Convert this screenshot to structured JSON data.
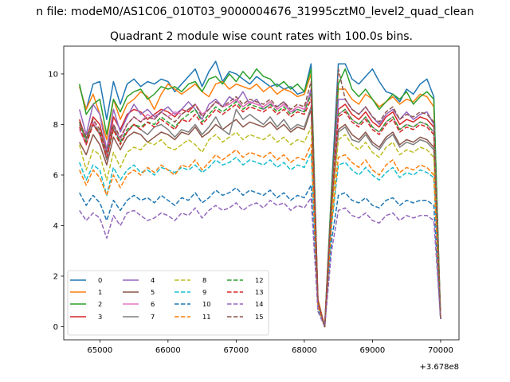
{
  "chart_data": {
    "type": "line",
    "suptitle": "n file: modeM0/AS1C06_010T03_9000004676_31995cztM0_level2_quad_clean",
    "title": "Quadrant 2 module wise count rates with 100.0s bins.",
    "xlabel": "",
    "ylabel": "",
    "x_offset_label": "+3.678e8",
    "xlim": [
      64470,
      70270
    ],
    "ylim": [
      -0.52,
      11.1
    ],
    "xticks": [
      65000,
      66000,
      67000,
      68000,
      69000,
      70000
    ],
    "xtick_labels": [
      "65000",
      "66000",
      "67000",
      "68000",
      "69000",
      "70000"
    ],
    "yticks": [
      0,
      2,
      4,
      6,
      8,
      10
    ],
    "ytick_labels": [
      "0",
      "2",
      "4",
      "6",
      "8",
      "10"
    ],
    "x": [
      64700,
      64800,
      64900,
      65000,
      65100,
      65200,
      65300,
      65400,
      65500,
      65600,
      65700,
      65800,
      65900,
      66000,
      66100,
      66200,
      66300,
      66400,
      66500,
      66600,
      66700,
      66800,
      66900,
      67000,
      67100,
      67200,
      67300,
      67400,
      67500,
      67600,
      67700,
      67800,
      67900,
      68000,
      68100,
      68200,
      68300,
      68400,
      68500,
      68600,
      68700,
      68800,
      68900,
      69000,
      69100,
      69200,
      69300,
      69400,
      69500,
      69600,
      69700,
      69800,
      69900,
      70000
    ],
    "legend": {
      "location": "lower-left",
      "columns": 4
    },
    "series": [
      {
        "name": "0",
        "color": "#1f77b4",
        "dash": "solid",
        "values": [
          9.5,
          8.6,
          9.6,
          9.7,
          8.2,
          9.7,
          8.8,
          9.6,
          9.8,
          9.5,
          9.7,
          9.6,
          9.8,
          9.7,
          9.3,
          9.6,
          9.9,
          10.2,
          9.5,
          10.1,
          10.5,
          9.7,
          10.1,
          10.0,
          9.8,
          9.6,
          9.9,
          9.7,
          9.5,
          9.6,
          9.4,
          9.5,
          9.2,
          9.3,
          10.4,
          1.0,
          0.0,
          5.5,
          10.4,
          10.4,
          9.8,
          9.6,
          9.9,
          10.2,
          9.7,
          9.3,
          9.2,
          8.9,
          9.4,
          9.2,
          9.6,
          9.8,
          9.1,
          0.3
        ]
      },
      {
        "name": "1",
        "color": "#ff7f0e",
        "dash": "solid",
        "values": [
          9.5,
          8.6,
          9.2,
          8.4,
          7.4,
          9.0,
          8.2,
          8.8,
          9.0,
          9.3,
          9.1,
          8.6,
          9.2,
          9.6,
          9.4,
          9.2,
          9.4,
          9.6,
          9.3,
          9.1,
          9.6,
          9.7,
          9.4,
          9.6,
          9.5,
          9.4,
          9.6,
          9.3,
          9.5,
          9.2,
          9.4,
          9.3,
          9.1,
          9.2,
          10.0,
          1.1,
          0.0,
          5.3,
          9.4,
          9.4,
          9.0,
          8.8,
          9.2,
          9.0,
          8.7,
          8.9,
          9.1,
          8.8,
          9.0,
          8.9,
          9.2,
          9.1,
          8.7,
          0.3
        ]
      },
      {
        "name": "2",
        "color": "#2ca02c",
        "dash": "solid",
        "values": [
          9.6,
          8.4,
          8.8,
          9.0,
          7.6,
          9.0,
          8.5,
          9.1,
          9.3,
          9.4,
          9.0,
          9.2,
          9.5,
          9.4,
          9.5,
          9.3,
          9.6,
          9.7,
          9.3,
          9.8,
          9.9,
          9.6,
          10.0,
          9.7,
          10.1,
          9.8,
          10.2,
          9.9,
          9.8,
          9.5,
          9.7,
          9.4,
          9.6,
          9.3,
          10.2,
          1.0,
          0.0,
          5.4,
          9.6,
          10.2,
          9.4,
          9.1,
          9.4,
          9.0,
          8.6,
          8.9,
          9.2,
          9.0,
          9.3,
          8.8,
          9.1,
          9.3,
          9.0,
          0.3
        ]
      },
      {
        "name": "3",
        "color": "#d62728",
        "dash": "solid",
        "values": [
          8.2,
          7.4,
          8.3,
          8.0,
          6.8,
          8.3,
          7.8,
          8.4,
          8.6,
          8.5,
          8.2,
          8.4,
          8.6,
          8.5,
          8.3,
          8.6,
          8.5,
          8.8,
          8.4,
          8.6,
          8.9,
          8.7,
          8.8,
          9.0,
          8.7,
          8.9,
          8.8,
          8.7,
          8.9,
          8.6,
          8.8,
          8.5,
          8.7,
          8.6,
          9.3,
          1.0,
          0.0,
          5.0,
          8.6,
          8.8,
          8.4,
          8.2,
          8.5,
          8.1,
          7.9,
          8.3,
          8.5,
          8.0,
          8.2,
          8.1,
          8.3,
          8.2,
          7.9,
          0.3
        ]
      },
      {
        "name": "4",
        "color": "#9467bd",
        "dash": "solid",
        "values": [
          8.6,
          7.6,
          8.8,
          8.4,
          7.0,
          8.6,
          7.7,
          8.3,
          8.8,
          8.4,
          8.6,
          8.3,
          8.5,
          8.7,
          8.4,
          8.6,
          8.9,
          8.6,
          8.2,
          8.8,
          9.0,
          8.7,
          9.1,
          8.9,
          9.3,
          8.8,
          9.0,
          8.6,
          8.8,
          8.7,
          8.9,
          8.5,
          8.6,
          8.5,
          9.4,
          1.0,
          0.0,
          5.0,
          9.0,
          9.0,
          8.6,
          8.4,
          8.7,
          8.3,
          8.0,
          8.4,
          8.6,
          8.2,
          8.5,
          8.2,
          8.4,
          8.5,
          8.0,
          0.3
        ]
      },
      {
        "name": "5",
        "color": "#8c564b",
        "dash": "solid",
        "values": [
          7.3,
          6.8,
          7.6,
          7.2,
          6.4,
          7.5,
          7.0,
          7.5,
          7.7,
          7.6,
          7.3,
          7.5,
          7.7,
          7.6,
          7.4,
          7.7,
          7.6,
          7.9,
          7.5,
          7.7,
          8.0,
          7.8,
          8.0,
          8.2,
          7.9,
          8.1,
          8.0,
          7.9,
          8.1,
          7.8,
          8.0,
          7.7,
          7.9,
          7.8,
          8.6,
          0.9,
          0.0,
          4.6,
          7.8,
          8.0,
          7.6,
          7.4,
          7.7,
          7.3,
          7.1,
          7.5,
          7.7,
          7.2,
          7.4,
          7.3,
          7.5,
          7.4,
          7.1,
          0.3
        ]
      },
      {
        "name": "6",
        "color": "#e377c2",
        "dash": "solid",
        "values": [
          7.8,
          7.2,
          8.1,
          7.7,
          6.8,
          8.0,
          7.4,
          8.0,
          8.3,
          8.1,
          8.4,
          8.2,
          8.5,
          8.3,
          8.5,
          8.4,
          8.6,
          8.8,
          8.4,
          8.6,
          8.9,
          8.7,
          8.8,
          9.0,
          8.7,
          8.9,
          8.8,
          8.7,
          8.9,
          8.6,
          8.8,
          8.5,
          8.7,
          8.6,
          9.2,
          1.0,
          0.0,
          4.9,
          8.4,
          8.6,
          8.2,
          8.0,
          8.3,
          7.9,
          7.7,
          8.1,
          8.3,
          7.8,
          8.0,
          7.9,
          8.1,
          8.0,
          7.7,
          0.3
        ]
      },
      {
        "name": "7",
        "color": "#7f7f7f",
        "dash": "solid",
        "values": [
          8.0,
          7.4,
          8.0,
          7.6,
          6.6,
          7.9,
          7.3,
          7.7,
          8.0,
          7.8,
          7.6,
          7.9,
          8.0,
          7.8,
          7.5,
          7.8,
          7.7,
          8.0,
          7.6,
          7.9,
          8.3,
          7.8,
          7.6,
          8.6,
          8.2,
          8.4,
          8.2,
          8.0,
          8.3,
          7.9,
          8.2,
          7.8,
          8.0,
          7.9,
          8.7,
          0.9,
          0.0,
          4.7,
          7.7,
          7.9,
          7.4,
          7.3,
          7.6,
          7.2,
          7.0,
          7.4,
          7.6,
          7.1,
          7.3,
          7.2,
          7.4,
          7.3,
          7.0,
          0.3
        ]
      },
      {
        "name": "8",
        "color": "#bcbd22",
        "dash": "dashed",
        "values": [
          7.2,
          6.2,
          7.0,
          6.8,
          5.8,
          6.9,
          6.3,
          6.9,
          7.1,
          7.0,
          7.3,
          7.2,
          7.4,
          7.1,
          7.0,
          7.2,
          7.4,
          7.2,
          6.9,
          7.4,
          7.6,
          7.3,
          7.5,
          7.7,
          7.4,
          7.6,
          7.5,
          7.4,
          7.6,
          7.3,
          7.5,
          7.2,
          7.4,
          7.3,
          7.9,
          0.9,
          0.0,
          4.4,
          7.4,
          7.6,
          7.2,
          7.0,
          7.3,
          6.9,
          6.7,
          7.1,
          7.3,
          6.8,
          7.0,
          6.9,
          7.1,
          7.0,
          6.7,
          0.3
        ]
      },
      {
        "name": "9",
        "color": "#17becf",
        "dash": "dashed",
        "values": [
          6.5,
          5.8,
          6.4,
          6.2,
          5.2,
          6.3,
          5.8,
          6.2,
          6.4,
          6.1,
          6.2,
          6.0,
          6.3,
          6.2,
          6.1,
          6.3,
          6.2,
          6.4,
          6.1,
          6.3,
          6.6,
          6.4,
          6.5,
          6.7,
          6.4,
          6.6,
          6.5,
          6.4,
          6.6,
          6.3,
          6.5,
          6.2,
          6.4,
          6.3,
          6.9,
          0.8,
          0.0,
          4.0,
          6.4,
          6.5,
          6.2,
          6.0,
          6.3,
          6.0,
          5.8,
          6.1,
          6.3,
          5.9,
          6.1,
          6.0,
          6.2,
          6.1,
          5.9,
          0.3
        ]
      },
      {
        "name": "10",
        "color": "#1f77b4",
        "dash": "dashed",
        "values": [
          5.3,
          4.8,
          5.2,
          4.9,
          4.2,
          5.0,
          4.6,
          5.0,
          5.2,
          5.0,
          5.1,
          4.9,
          5.2,
          5.0,
          4.8,
          5.1,
          5.0,
          5.3,
          4.9,
          5.1,
          5.4,
          5.2,
          5.3,
          5.5,
          5.2,
          5.4,
          5.3,
          5.2,
          5.4,
          5.1,
          5.3,
          5.0,
          5.2,
          5.1,
          5.6,
          0.7,
          0.0,
          3.4,
          5.2,
          5.3,
          5.0,
          4.9,
          5.1,
          4.8,
          4.7,
          5.0,
          5.1,
          4.8,
          5.0,
          4.9,
          5.0,
          5.0,
          4.8,
          0.3
        ]
      },
      {
        "name": "11",
        "color": "#ff7f0e",
        "dash": "dashed",
        "values": [
          6.2,
          5.6,
          6.2,
          5.9,
          5.2,
          6.0,
          5.5,
          6.0,
          6.2,
          6.0,
          6.3,
          6.1,
          6.4,
          6.2,
          6.0,
          6.4,
          6.3,
          6.6,
          6.2,
          6.5,
          6.8,
          6.6,
          6.8,
          7.0,
          6.7,
          6.9,
          6.8,
          6.7,
          6.9,
          6.6,
          6.8,
          6.5,
          6.7,
          6.6,
          7.2,
          0.8,
          0.0,
          4.1,
          6.7,
          6.8,
          6.5,
          6.3,
          6.6,
          6.2,
          6.0,
          6.4,
          6.6,
          6.1,
          6.3,
          6.2,
          6.4,
          6.3,
          6.0,
          0.3
        ]
      },
      {
        "name": "12",
        "color": "#2ca02c",
        "dash": "dashed",
        "values": [
          8.1,
          7.3,
          8.0,
          7.7,
          6.7,
          7.8,
          7.3,
          7.8,
          8.0,
          7.9,
          8.1,
          8.0,
          8.3,
          8.1,
          7.9,
          8.2,
          8.4,
          8.6,
          8.1,
          8.4,
          8.7,
          8.5,
          8.7,
          8.9,
          8.6,
          8.8,
          8.7,
          8.6,
          8.8,
          8.5,
          8.7,
          8.4,
          8.6,
          8.5,
          9.2,
          1.0,
          0.0,
          4.9,
          8.4,
          8.6,
          8.2,
          8.0,
          8.3,
          7.9,
          7.7,
          8.1,
          8.3,
          7.8,
          8.0,
          7.9,
          8.1,
          8.0,
          7.7,
          0.3
        ]
      },
      {
        "name": "13",
        "color": "#d62728",
        "dash": "dashed",
        "values": [
          7.9,
          7.2,
          8.0,
          7.6,
          6.7,
          7.8,
          7.2,
          7.7,
          8.0,
          7.8,
          8.1,
          7.9,
          8.2,
          8.0,
          7.8,
          8.2,
          8.1,
          8.4,
          8.0,
          8.3,
          8.6,
          8.4,
          8.6,
          8.8,
          8.5,
          8.7,
          8.6,
          8.5,
          8.7,
          8.4,
          8.6,
          8.3,
          8.5,
          8.4,
          9.0,
          1.0,
          0.0,
          4.8,
          8.3,
          8.5,
          8.1,
          7.9,
          8.2,
          7.8,
          7.6,
          8.0,
          8.2,
          7.7,
          7.9,
          7.8,
          8.0,
          7.9,
          7.6,
          0.3
        ]
      },
      {
        "name": "14",
        "color": "#9467bd",
        "dash": "dashed",
        "values": [
          4.6,
          4.2,
          4.5,
          4.3,
          3.5,
          4.4,
          4.0,
          4.5,
          4.6,
          4.4,
          4.2,
          4.3,
          4.5,
          4.4,
          4.2,
          4.5,
          4.4,
          4.7,
          4.3,
          4.6,
          4.8,
          4.6,
          4.7,
          4.9,
          4.6,
          4.8,
          4.9,
          4.7,
          5.0,
          4.8,
          4.9,
          4.6,
          4.8,
          4.7,
          5.1,
          0.6,
          0.0,
          3.0,
          4.6,
          4.7,
          4.4,
          4.3,
          4.5,
          4.2,
          4.1,
          4.4,
          4.5,
          4.2,
          4.4,
          4.3,
          4.4,
          4.4,
          4.2,
          0.3
        ]
      },
      {
        "name": "15",
        "color": "#8c564b",
        "dash": "dashed",
        "values": [
          8.1,
          7.5,
          8.2,
          7.8,
          6.9,
          8.0,
          7.5,
          8.0,
          8.3,
          8.1,
          8.3,
          8.2,
          8.5,
          8.3,
          8.1,
          8.4,
          8.6,
          8.8,
          8.3,
          8.6,
          8.9,
          8.7,
          8.9,
          9.1,
          8.8,
          9.0,
          8.9,
          8.8,
          9.0,
          8.7,
          8.9,
          8.6,
          8.8,
          8.7,
          9.7,
          1.0,
          0.0,
          5.0,
          10.2,
          9.0,
          8.6,
          8.4,
          8.7,
          8.3,
          8.1,
          8.5,
          8.7,
          8.2,
          8.4,
          8.3,
          8.5,
          8.4,
          8.1,
          0.3
        ]
      }
    ]
  }
}
